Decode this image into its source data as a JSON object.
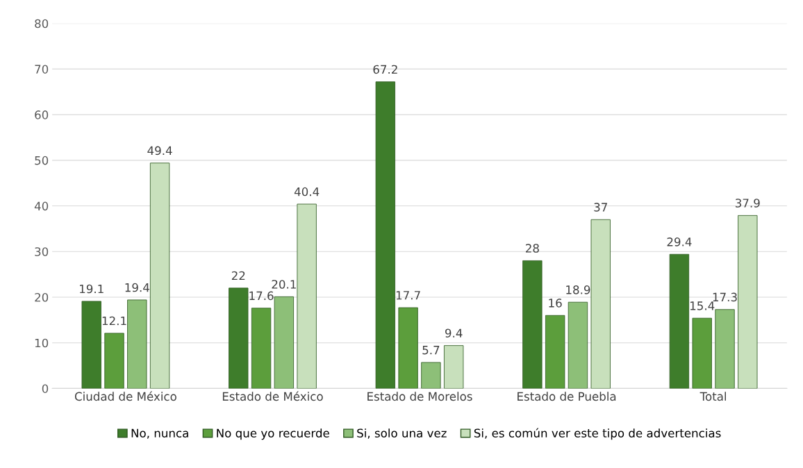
{
  "chart_data": {
    "type": "bar",
    "categories": [
      "Ciudad de México",
      "Estado de México",
      "Estado de Morelos",
      "Estado de Puebla",
      "Total"
    ],
    "series": [
      {
        "name": "No, nunca",
        "color": "#3e7d2b",
        "values": [
          19.1,
          22,
          67.2,
          28,
          29.4
        ]
      },
      {
        "name": "No que yo recuerde",
        "color": "#5c9e3c",
        "values": [
          12.1,
          17.6,
          17.7,
          16,
          15.4
        ]
      },
      {
        "name": "Si, solo una vez",
        "color": "#8dbf78",
        "values": [
          19.4,
          20.1,
          5.7,
          18.9,
          17.3
        ]
      },
      {
        "name": "Si, es común ver este tipo de advertencias",
        "color": "#c8e0bc",
        "values": [
          49.4,
          40.4,
          9.4,
          37,
          37.9
        ]
      }
    ],
    "ylim": [
      0,
      80
    ],
    "yticks": [
      0,
      10,
      20,
      30,
      40,
      50,
      60,
      70,
      80
    ],
    "grid": "y",
    "legend": "bottom",
    "data_labels": true
  }
}
